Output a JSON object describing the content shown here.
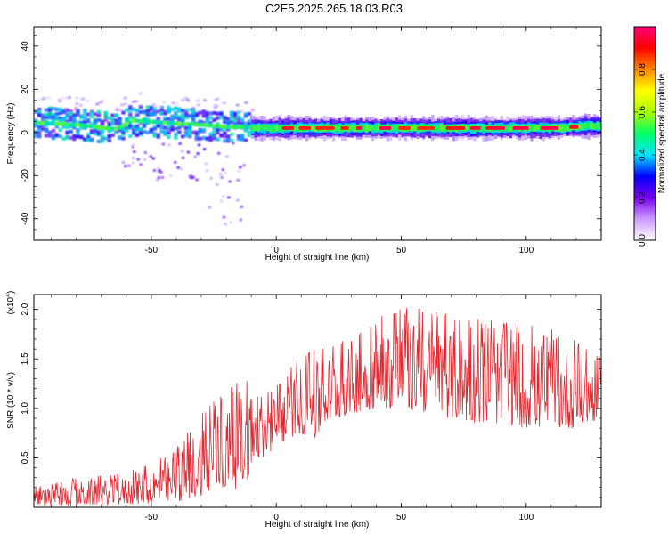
{
  "title": "C2E5.2025.265.18.03.R03",
  "chart_data": [
    {
      "type": "heatmap",
      "title": "C2E5.2025.265.18.03.R03",
      "xlabel": "Height of straight line (km)",
      "ylabel": "Frequency (Hz)",
      "xlim": [
        -97,
        130
      ],
      "ylim": [
        -50,
        49
      ],
      "xticks": [
        -50,
        0,
        50,
        100
      ],
      "yticks": [
        -40,
        -20,
        0,
        20,
        40
      ],
      "colorbar": {
        "label": "Normalized spectral amplitude",
        "range": [
          0,
          1
        ],
        "ticks": [
          "0.0",
          "0.2",
          "0.4",
          "0.6",
          "0.8"
        ],
        "tick_values": [
          0,
          0.2,
          0.4,
          0.6,
          0.8
        ],
        "colors": [
          "#ffffff",
          "#cc99ff",
          "#7700ee",
          "#0000ff",
          "#00e5ff",
          "#00ff66",
          "#aaff00",
          "#ffff00",
          "#ff8800",
          "#ff0000",
          "#ff0077"
        ]
      },
      "ridge": {
        "x": [
          -97,
          -80,
          -65,
          -58,
          -45,
          -30,
          -20,
          -13,
          -10,
          0,
          20,
          50,
          80,
          110,
          125,
          130
        ],
        "y": [
          4,
          3,
          1,
          5,
          4,
          3,
          2,
          2,
          2,
          2,
          2,
          2,
          2,
          2,
          3,
          3
        ]
      }
    },
    {
      "type": "line",
      "xlabel": "Height of straight line (km)",
      "ylabel": "SNR (10 * v/v)",
      "multiplier": "(x10",
      "multiplier_exp": "4",
      "xlim": [
        -97,
        130
      ],
      "ylim": [
        0,
        2.15
      ],
      "xticks": [
        -50,
        0,
        50,
        100
      ],
      "yticks": [
        0.5,
        1.0,
        1.5,
        2.0
      ],
      "ytick_labels": [
        "0.5",
        "1.0",
        "1.5",
        "2.0"
      ],
      "color": "#e8262e",
      "envelope": {
        "x": [
          -97,
          -80,
          -60,
          -50,
          -40,
          -30,
          -20,
          -12,
          -10,
          -5,
          0,
          5,
          10,
          15,
          20,
          30,
          40,
          50,
          60,
          70,
          80,
          90,
          100,
          110,
          120,
          130
        ],
        "low": [
          0.02,
          0.02,
          0.03,
          0.04,
          0.05,
          0.12,
          0.18,
          0.2,
          0.45,
          0.5,
          0.6,
          0.7,
          0.75,
          0.65,
          0.85,
          0.95,
          1.0,
          1.0,
          0.95,
          0.9,
          0.85,
          0.85,
          0.8,
          0.8,
          0.8,
          0.9
        ],
        "high": [
          0.2,
          0.3,
          0.35,
          0.45,
          0.6,
          1.0,
          1.2,
          1.3,
          1.1,
          1.15,
          1.25,
          1.4,
          1.55,
          1.6,
          1.65,
          1.75,
          1.9,
          2.05,
          2.0,
          1.95,
          1.9,
          1.9,
          1.85,
          1.8,
          1.7,
          1.55
        ]
      }
    }
  ]
}
